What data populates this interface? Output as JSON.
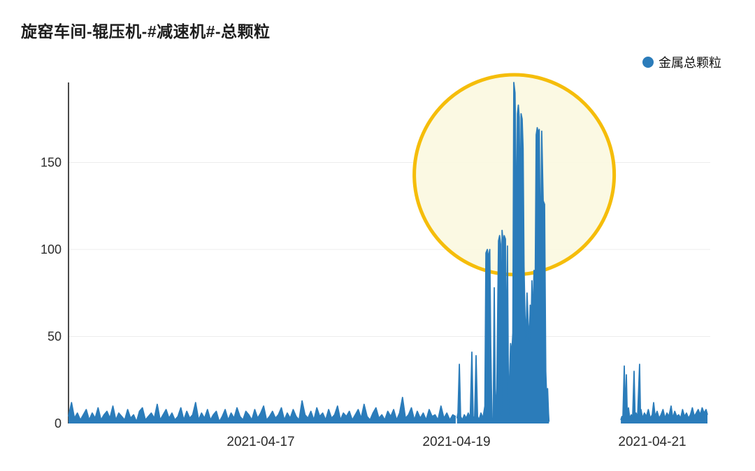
{
  "page": {
    "title": "旋窑车间-辊压机-#减速机#-总颗粒"
  },
  "legend": {
    "label": "金属总颗粒",
    "marker_color": "#2B7CBA"
  },
  "style": {
    "series_color": "#2B7CBA",
    "grid_color": "#ECECEC",
    "axis_color": "#4A4A4A",
    "text_color": "#2B2B2B",
    "background": "#FFFFFF"
  },
  "chart_data": {
    "type": "line",
    "title": "旋窑车间-辊压机-#减速机#-总颗粒",
    "xlabel": "",
    "ylabel": "",
    "x_axis": {
      "unit": "days since 2021-04-15 00:00",
      "range": [
        0,
        6.57
      ],
      "ticks": [
        {
          "t": 2,
          "label": "2021-04-17"
        },
        {
          "t": 4,
          "label": "2021-04-19"
        },
        {
          "t": 6,
          "label": "2021-04-21"
        }
      ]
    },
    "y_axis": {
      "range": [
        0,
        196
      ],
      "ticks": [
        0,
        50,
        100,
        150
      ]
    },
    "grid": true,
    "legend_position": "top-right",
    "annotation": {
      "shape": "circle",
      "center_t": 4.59,
      "center_value": 143,
      "radius_px": 143,
      "stroke": "#F5BD0A",
      "stroke_width": 5,
      "fill": "#FBF8E0",
      "fill_opacity": 0.9
    },
    "series": [
      {
        "name": "金属总颗粒",
        "color": "#2B7CBA",
        "segments": [
          {
            "start": 0.036,
            "step": 0.0302,
            "values": [
              4,
              12,
              3,
              6,
              2,
              5,
              8,
              2,
              6,
              3,
              9,
              2,
              5,
              7,
              3,
              10,
              2,
              6,
              4,
              2,
              8,
              3,
              5,
              1,
              7,
              9,
              2,
              4,
              6,
              3,
              11,
              2,
              5,
              8,
              3,
              6,
              2,
              4,
              9,
              2,
              7,
              3,
              5,
              12,
              2,
              6,
              3,
              8,
              2,
              5,
              7,
              1,
              4,
              8,
              2,
              6,
              3,
              9,
              4,
              2,
              7,
              5,
              2,
              8,
              3,
              6,
              10,
              2,
              4,
              7,
              3,
              5,
              9,
              2,
              6,
              3,
              8,
              4,
              2,
              13,
              5,
              3,
              7,
              2,
              9,
              4,
              6,
              2,
              8,
              3,
              5,
              10,
              2,
              6,
              4,
              7,
              2,
              5,
              8,
              3,
              11,
              4,
              2,
              6,
              9,
              3,
              5,
              2,
              7,
              4,
              8,
              2,
              6,
              15,
              3,
              5,
              9,
              2,
              7,
              3,
              6,
              2,
              8,
              4,
              5,
              2,
              10,
              3,
              6,
              2,
              5,
              4
            ]
          },
          {
            "points": [
              [
                4.005,
                3
              ],
              [
                4.015,
                6
              ],
              [
                4.029,
                34
              ],
              [
                4.042,
                4
              ],
              [
                4.06,
                2
              ],
              [
                4.08,
                5
              ],
              [
                4.1,
                3
              ],
              [
                4.12,
                6
              ],
              [
                4.14,
                3
              ],
              [
                4.157,
                41
              ],
              [
                4.17,
                4
              ],
              [
                4.185,
                3
              ],
              [
                4.2,
                39
              ],
              [
                4.215,
                4
              ],
              [
                4.23,
                2
              ],
              [
                4.25,
                6
              ],
              [
                4.27,
                3
              ],
              [
                4.29,
                10
              ],
              [
                4.301,
                98
              ],
              [
                4.315,
                100
              ],
              [
                4.325,
                95
              ],
              [
                4.34,
                100
              ],
              [
                4.35,
                45
              ],
              [
                4.362,
                3
              ],
              [
                4.375,
                2
              ],
              [
                4.386,
                78
              ],
              [
                4.398,
                4
              ],
              [
                4.412,
                20
              ],
              [
                4.429,
                105
              ],
              [
                4.441,
                108
              ],
              [
                4.451,
                103
              ],
              [
                4.458,
                5
              ],
              [
                4.466,
                111
              ],
              [
                4.476,
                104
              ],
              [
                4.487,
                108
              ],
              [
                4.5,
                106
              ],
              [
                4.511,
                30
              ],
              [
                4.521,
                102
              ],
              [
                4.532,
                5
              ],
              [
                4.543,
                28
              ],
              [
                4.553,
                46
              ],
              [
                4.565,
                40
              ],
              [
                4.576,
                52
              ],
              [
                4.586,
                196
              ],
              [
                4.598,
                190
              ],
              [
                4.607,
                150
              ],
              [
                4.614,
                55
              ],
              [
                4.622,
                178
              ],
              [
                4.632,
                183
              ],
              [
                4.641,
                176
              ],
              [
                4.65,
                120
              ],
              [
                4.66,
                178
              ],
              [
                4.671,
                175
              ],
              [
                4.681,
                158
              ],
              [
                4.69,
                90
              ],
              [
                4.7,
                62
              ],
              [
                4.71,
                48
              ],
              [
                4.721,
                75
              ],
              [
                4.732,
                58
              ],
              [
                4.743,
                47
              ],
              [
                4.753,
                68
              ],
              [
                4.762,
                55
              ],
              [
                4.771,
                82
              ],
              [
                4.781,
                60
              ],
              [
                4.792,
                88
              ],
              [
                4.803,
                70
              ],
              [
                4.814,
                166
              ],
              [
                4.825,
                170
              ],
              [
                4.835,
                167
              ],
              [
                4.846,
                169
              ],
              [
                4.857,
                90
              ],
              [
                4.871,
                168
              ],
              [
                4.886,
                128
              ],
              [
                4.9,
                126
              ],
              [
                4.912,
                30
              ],
              [
                4.922,
                14
              ],
              [
                4.931,
                20
              ],
              [
                4.94,
                6
              ],
              [
                4.945,
                1
              ]
            ]
          },
          {
            "points": [
              [
                5.679,
                2
              ],
              [
                5.69,
                4
              ],
              [
                5.7,
                3
              ],
              [
                5.714,
                33
              ],
              [
                5.725,
                5
              ],
              [
                5.736,
                28
              ],
              [
                5.745,
                4
              ],
              [
                5.757,
                9
              ],
              [
                5.77,
                3
              ],
              [
                5.786,
                5
              ],
              [
                5.8,
                4
              ],
              [
                5.814,
                30
              ],
              [
                5.825,
                4
              ],
              [
                5.836,
                6
              ],
              [
                5.85,
                3
              ],
              [
                5.871,
                34
              ],
              [
                5.88,
                5
              ],
              [
                5.886,
                8
              ],
              [
                5.9,
                3
              ],
              [
                5.92,
                6
              ],
              [
                5.94,
                4
              ],
              [
                5.96,
                8
              ],
              [
                5.98,
                3
              ],
              [
                6.0,
                5
              ],
              [
                6.014,
                12
              ],
              [
                6.03,
                4
              ],
              [
                6.05,
                7
              ],
              [
                6.07,
                3
              ],
              [
                6.09,
                5
              ],
              [
                6.11,
                8
              ],
              [
                6.13,
                3
              ],
              [
                6.15,
                6
              ],
              [
                6.17,
                4
              ],
              [
                6.193,
                10
              ],
              [
                6.21,
                3
              ],
              [
                6.23,
                7
              ],
              [
                6.25,
                4
              ],
              [
                6.27,
                5
              ],
              [
                6.29,
                3
              ],
              [
                6.31,
                8
              ],
              [
                6.33,
                4
              ],
              [
                6.35,
                6
              ],
              [
                6.37,
                3
              ],
              [
                6.39,
                5
              ],
              [
                6.41,
                9
              ],
              [
                6.43,
                4
              ],
              [
                6.45,
                6
              ],
              [
                6.47,
                8
              ],
              [
                6.49,
                5
              ],
              [
                6.51,
                9
              ],
              [
                6.53,
                6
              ],
              [
                6.55,
                8
              ],
              [
                6.564,
                5
              ]
            ]
          }
        ]
      }
    ]
  }
}
